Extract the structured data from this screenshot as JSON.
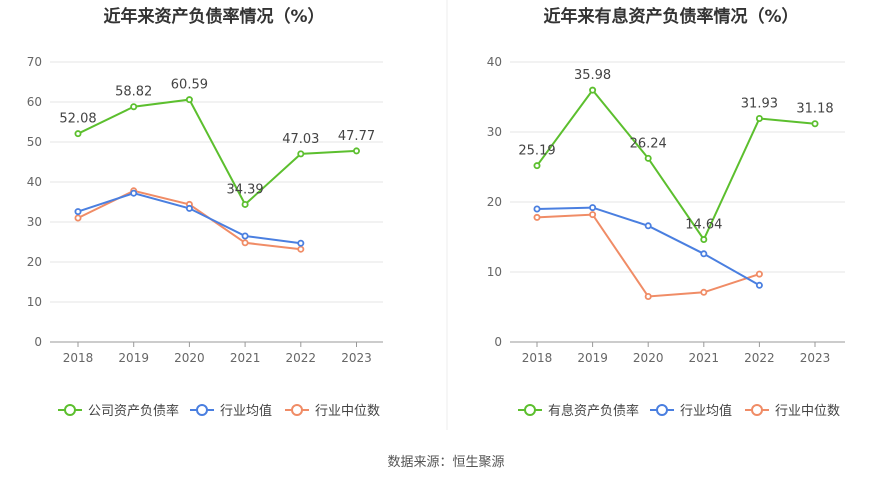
{
  "source_note": "数据来源：恒生聚源",
  "colors": {
    "company": "#5cbf2e",
    "industry_avg": "#4a7fe0",
    "industry_median": "#f08c66"
  },
  "chart_data": [
    {
      "type": "line",
      "title": "近年来资产负债率情况（%）",
      "categories": [
        "2018",
        "2019",
        "2020",
        "2021",
        "2022",
        "2023"
      ],
      "ylim": [
        0,
        70
      ],
      "yticks": [
        "0",
        "10",
        "20",
        "30",
        "40",
        "50",
        "60",
        "70"
      ],
      "series": [
        {
          "name": "公司资产负债率",
          "values": [
            52.08,
            58.82,
            60.59,
            34.39,
            47.03,
            47.77
          ],
          "labels": [
            "52.08",
            "58.82",
            "60.59",
            "34.39",
            "47.03",
            "47.77"
          ]
        },
        {
          "name": "行业均值",
          "values": [
            32.6,
            37.2,
            33.4,
            26.5,
            24.7,
            null
          ]
        },
        {
          "name": "行业中位数",
          "values": [
            31.0,
            37.8,
            34.4,
            24.8,
            23.2,
            null
          ]
        }
      ]
    },
    {
      "type": "line",
      "title": "近年来有息资产负债率情况（%）",
      "categories": [
        "2018",
        "2019",
        "2020",
        "2021",
        "2022",
        "2023"
      ],
      "ylim": [
        0,
        40
      ],
      "yticks": [
        "0",
        "10",
        "20",
        "30",
        "40"
      ],
      "series": [
        {
          "name": "有息资产负债率",
          "values": [
            25.19,
            35.98,
            26.24,
            14.64,
            31.93,
            31.18
          ],
          "labels": [
            "25.19",
            "35.98",
            "26.24",
            "14.64",
            "31.93",
            "31.18"
          ]
        },
        {
          "name": "行业均值",
          "values": [
            19.0,
            19.2,
            16.6,
            12.6,
            8.1,
            null
          ]
        },
        {
          "name": "行业中位数",
          "values": [
            17.8,
            18.2,
            6.5,
            7.1,
            9.7,
            null
          ]
        }
      ]
    }
  ]
}
